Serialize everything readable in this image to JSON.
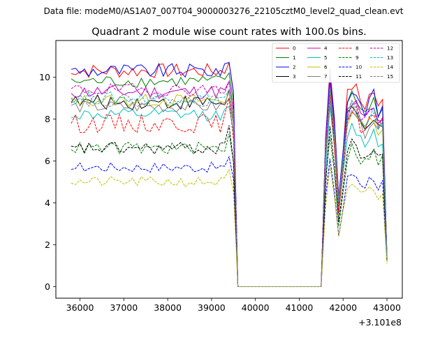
{
  "suptitle": "Data file: modeM0/AS1A07_007T04_9000003276_22105cztM0_level2_quad_clean.evt",
  "chart_data": {
    "type": "line",
    "title": "Quadrant 2 module wise count rates with 100.0s bins.",
    "xlabel": "",
    "ylabel": "",
    "x_offset_label": "+3.101e8",
    "xlim": [
      35450,
      43350
    ],
    "ylim": [
      -0.55,
      11.75
    ],
    "x_ticks": [
      36000,
      37000,
      38000,
      39000,
      40000,
      41000,
      42000,
      43000
    ],
    "x_tick_labels": [
      "36000",
      "37000",
      "38000",
      "39000",
      "40000",
      "41000",
      "42000",
      "43000"
    ],
    "y_ticks": [
      0,
      2,
      4,
      6,
      8,
      10
    ],
    "y_tick_labels": [
      "0",
      "2",
      "4",
      "6",
      "8",
      "10"
    ],
    "legend_position": "upper-right",
    "segments": [
      {
        "name": "active-1",
        "x_start": 35800,
        "x_end": 39300,
        "step": 100
      },
      {
        "name": "drop",
        "x": [
          39400,
          39500,
          39600
        ]
      },
      {
        "name": "zero",
        "x_start": 39600,
        "x_end": 41500,
        "value": 0
      },
      {
        "name": "active-2",
        "x": [
          41500,
          41600,
          41700,
          41800,
          41900,
          42000,
          42100,
          42200,
          42300,
          42400,
          42500,
          42600,
          42700,
          42800,
          42900,
          43000
        ]
      }
    ],
    "series": [
      {
        "name": "0",
        "color": "#ff0000",
        "dash": "solid",
        "level1": 10.3,
        "peak": 10.3,
        "level2": 9.6,
        "end": 1.5,
        "jitter": 0.35
      },
      {
        "name": "1",
        "color": "#008000",
        "dash": "solid",
        "level1": 9.8,
        "peak": 10.0,
        "level2": 9.2,
        "end": 1.4,
        "jitter": 0.3
      },
      {
        "name": "2",
        "color": "#0000ff",
        "dash": "solid",
        "level1": 10.3,
        "peak": 10.3,
        "level2": 9.4,
        "end": 1.5,
        "jitter": 0.35
      },
      {
        "name": "3",
        "color": "#000000",
        "dash": "solid",
        "level1": 8.8,
        "peak": 9.4,
        "level2": 8.4,
        "end": 1.4,
        "jitter": 0.35
      },
      {
        "name": "4",
        "color": "#bf00bf",
        "dash": "solid",
        "level1": 9.3,
        "peak": 9.8,
        "level2": 8.8,
        "end": 1.4,
        "jitter": 0.35
      },
      {
        "name": "5",
        "color": "#00bfbf",
        "dash": "solid",
        "level1": 8.2,
        "peak": 8.6,
        "level2": 7.6,
        "end": 1.3,
        "jitter": 0.3
      },
      {
        "name": "6",
        "color": "#bfbf00",
        "dash": "solid",
        "level1": 8.9,
        "peak": 9.2,
        "level2": 8.4,
        "end": 1.4,
        "jitter": 0.3
      },
      {
        "name": "7",
        "color": "#808080",
        "dash": "solid",
        "level1": 8.6,
        "peak": 8.8,
        "level2": 8.2,
        "end": 1.3,
        "jitter": 0.3
      },
      {
        "name": "8",
        "color": "#ff0000",
        "dash": "dashed",
        "level1": 7.8,
        "peak": 9.0,
        "level2": 8.4,
        "end": 1.3,
        "jitter": 0.45
      },
      {
        "name": "9",
        "color": "#008000",
        "dash": "dashed",
        "level1": 6.6,
        "peak": 7.3,
        "level2": 6.6,
        "end": 1.2,
        "jitter": 0.3
      },
      {
        "name": "10",
        "color": "#0000ff",
        "dash": "dashed",
        "level1": 5.7,
        "peak": 6.2,
        "level2": 5.4,
        "end": 1.2,
        "jitter": 0.25
      },
      {
        "name": "11",
        "color": "#000000",
        "dash": "dashed",
        "level1": 6.6,
        "peak": 7.7,
        "level2": 6.8,
        "end": 1.2,
        "jitter": 0.3
      },
      {
        "name": "12",
        "color": "#bf00bf",
        "dash": "dashed",
        "level1": 9.4,
        "peak": 9.8,
        "level2": 8.7,
        "end": 1.4,
        "jitter": 0.3
      },
      {
        "name": "13",
        "color": "#00bfbf",
        "dash": "dashed",
        "level1": 9.0,
        "peak": 9.4,
        "level2": 8.6,
        "end": 1.4,
        "jitter": 0.3
      },
      {
        "name": "14",
        "color": "#bfbf00",
        "dash": "dashed",
        "level1": 5.0,
        "peak": 5.6,
        "level2": 4.9,
        "end": 1.1,
        "jitter": 0.25
      },
      {
        "name": "15",
        "color": "#808080",
        "dash": "dashed",
        "level1": 8.9,
        "peak": 9.2,
        "level2": 8.6,
        "end": 1.4,
        "jitter": 0.3
      }
    ]
  }
}
